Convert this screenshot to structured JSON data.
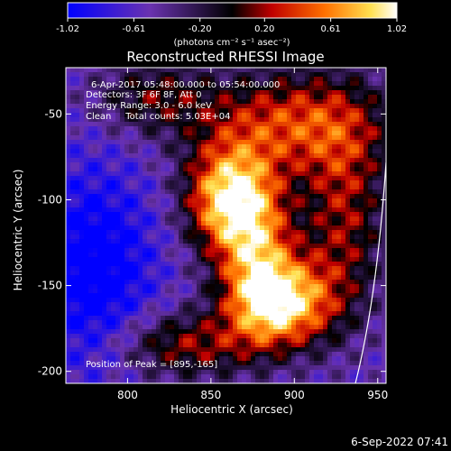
{
  "chart_data": {
    "type": "heatmap",
    "title": "Reconstructed RHESSI Image",
    "xlabel": "Heliocentric X (arcsec)",
    "ylabel": "Heliocentric Y (arcsec)",
    "xlim": [
      763,
      955
    ],
    "ylim": [
      -207,
      -23
    ],
    "x_ticks": [
      800,
      850,
      900,
      950
    ],
    "y_ticks": [
      -50,
      -100,
      -150,
      -200
    ],
    "colorbar": {
      "range": [
        -1.02,
        1.02
      ],
      "ticks": [
        "-1.02",
        "-0.61",
        "-0.20",
        "0.20",
        "0.61",
        "1.02"
      ],
      "units_label": "(photons cm⁻² s⁻¹ asec⁻²)",
      "colors": [
        "#0000ff",
        "#5a2a9a",
        "#000000",
        "#b00000",
        "#ff8000",
        "#ffff60",
        "#ffffff"
      ]
    },
    "annotations": [
      "6-Apr-2017 05:48:00.000 to 05:54:00.000",
      "Detectors: 3F 6F 8F, Att 0",
      "Energy Range: 3.0 - 6.0 keV",
      "Clean     Total counts: 5.03E+04"
    ],
    "peak": {
      "x": 895,
      "y": -165,
      "label": "Position of Peak = [895,-165]"
    },
    "limb_visible": true,
    "description_sources": [
      {
        "x": 860,
        "y": -100,
        "amp": 1.0
      },
      {
        "x": 895,
        "y": -165,
        "amp": 1.0
      },
      {
        "x": 880,
        "y": -140,
        "amp": 0.7
      }
    ]
  },
  "footer": {
    "timestamp": "6-Sep-2022 07:41"
  }
}
